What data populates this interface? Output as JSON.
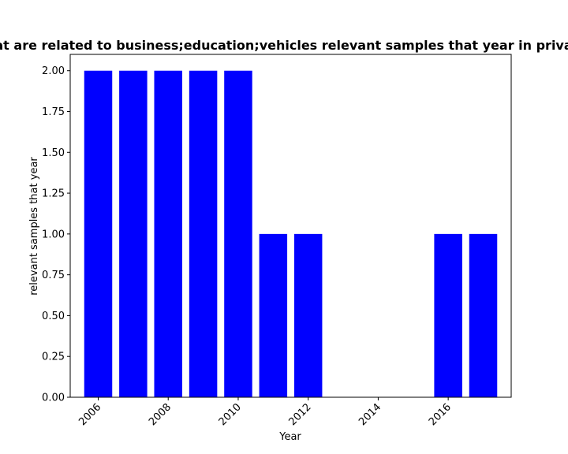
{
  "chart_data": {
    "type": "bar",
    "title": "Items that are related to business;education;vehicles relevant samples that year in privacy policies",
    "xlabel": "Year",
    "ylabel": "relevant samples that year",
    "x": [
      2006,
      2007,
      2008,
      2009,
      2010,
      2011,
      2012,
      2016,
      2017
    ],
    "values": [
      2,
      2,
      2,
      2,
      2,
      1,
      1,
      1,
      1
    ],
    "xlim": [
      2005.2,
      2017.8
    ],
    "ylim": [
      0,
      2.1
    ],
    "xticks": [
      "2006",
      "2008",
      "2010",
      "2012",
      "2014",
      "2016"
    ],
    "yticks": [
      "0.00",
      "0.25",
      "0.50",
      "0.75",
      "1.00",
      "1.25",
      "1.50",
      "1.75",
      "2.00"
    ],
    "bar_color": "#0000ff",
    "grid": false,
    "legend": "none"
  }
}
